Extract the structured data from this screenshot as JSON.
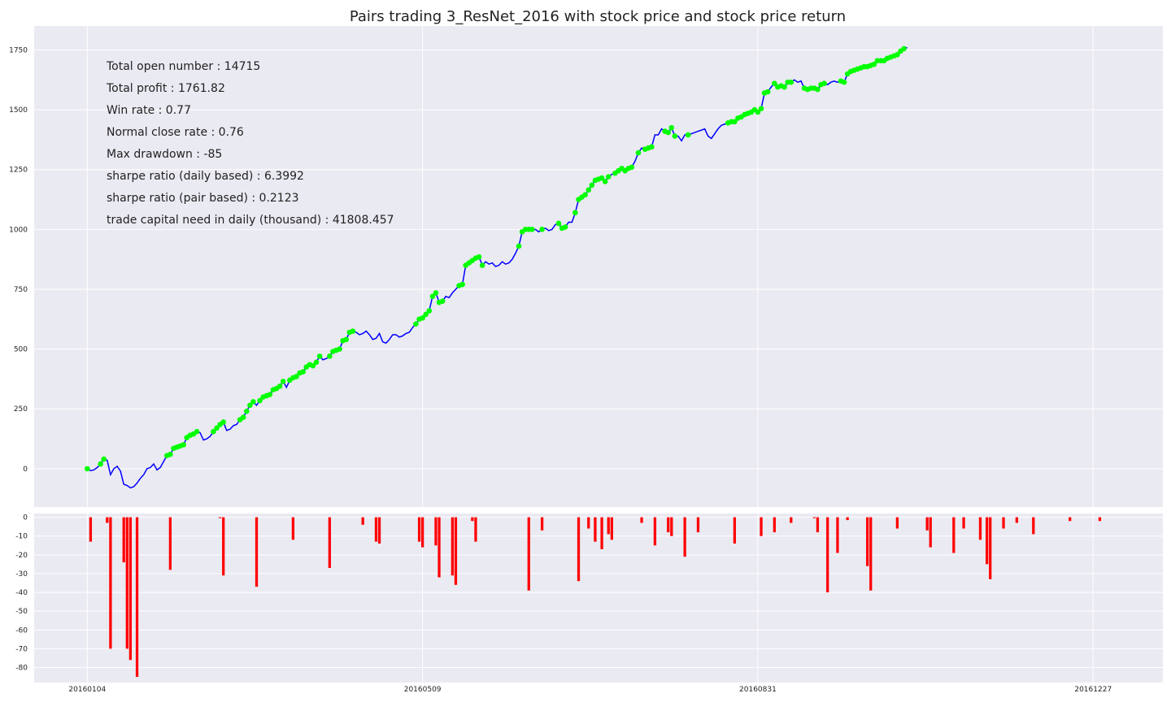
{
  "chart_data": [
    {
      "type": "line",
      "title": "Pairs trading 3_ResNet_2016 with stock price and stock price return",
      "stats": [
        "Total open number : 14715",
        "Total profit : 1761.82",
        "Win rate : 0.77",
        "Normal close rate : 0.76",
        "Max drawdown : -85",
        "sharpe ratio (daily based) : 6.3992",
        "sharpe ratio (pair based) : 0.2123",
        "trade capital need in daily (thousand) : 41808.457"
      ],
      "ylim": [
        -160,
        1850
      ],
      "yticks": [
        0,
        250,
        500,
        750,
        1000,
        1250,
        1500,
        1750
      ],
      "xlim": [
        -16,
        324
      ],
      "xticks": [
        0,
        101,
        202,
        303
      ],
      "xtick_labels": [
        "20160104",
        "20160509",
        "20160831",
        "20161227"
      ],
      "grid": true,
      "line_color": "#0000ff",
      "marker_color": "#00ff00",
      "series": [
        {
          "values": [
            0,
            -8,
            -5,
            5,
            20,
            40,
            35,
            -25,
            0,
            10,
            -10,
            -65,
            -70,
            -80,
            -75,
            -60,
            -40,
            -25,
            0,
            5,
            20,
            -5,
            5,
            30,
            55,
            60,
            85,
            90,
            95,
            100,
            130,
            140,
            145,
            155,
            150,
            120,
            125,
            135,
            155,
            170,
            185,
            195,
            160,
            165,
            180,
            185,
            205,
            215,
            240,
            265,
            280,
            265,
            285,
            300,
            305,
            310,
            330,
            335,
            345,
            365,
            340,
            370,
            380,
            385,
            400,
            405,
            425,
            435,
            430,
            445,
            470,
            455,
            460,
            470,
            490,
            495,
            500,
            535,
            540,
            570,
            575,
            570,
            560,
            565,
            575,
            560,
            540,
            545,
            565,
            530,
            525,
            540,
            560,
            560,
            550,
            555,
            565,
            570,
            590,
            605,
            625,
            630,
            645,
            660,
            720,
            735,
            695,
            700,
            720,
            715,
            735,
            750,
            765,
            770,
            850,
            860,
            870,
            880,
            885,
            850,
            865,
            855,
            860,
            845,
            850,
            865,
            855,
            860,
            875,
            900,
            930,
            990,
            1000,
            1000,
            1000,
            1000,
            990,
            1000,
            1005,
            995,
            1000,
            1020,
            1025,
            1005,
            1010,
            1030,
            1030,
            1070,
            1125,
            1135,
            1145,
            1165,
            1185,
            1205,
            1210,
            1215,
            1200,
            1220,
            1230,
            1235,
            1245,
            1255,
            1245,
            1255,
            1260,
            1285,
            1320,
            1340,
            1335,
            1340,
            1345,
            1395,
            1395,
            1420,
            1410,
            1405,
            1425,
            1390,
            1390,
            1370,
            1395,
            1395,
            1400,
            1405,
            1410,
            1415,
            1420,
            1390,
            1380,
            1400,
            1420,
            1435,
            1440,
            1445,
            1450,
            1450,
            1465,
            1470,
            1480,
            1485,
            1490,
            1500,
            1490,
            1505,
            1570,
            1575,
            1595,
            1610,
            1595,
            1600,
            1595,
            1615,
            1615,
            1625,
            1615,
            1620,
            1590,
            1585,
            1590,
            1590,
            1585,
            1605,
            1610,
            1605,
            1615,
            1620,
            1615,
            1620,
            1615,
            1650,
            1660,
            1665,
            1670,
            1675,
            1680,
            1680,
            1685,
            1690,
            1705,
            1705,
            1705,
            1715,
            1720,
            1725,
            1730,
            1745,
            1755,
            1760
          ],
          "markers": [
            0,
            4,
            5,
            24,
            25,
            26,
            27,
            28,
            29,
            30,
            31,
            32,
            33,
            38,
            39,
            40,
            41,
            46,
            47,
            48,
            49,
            50,
            52,
            53,
            54,
            55,
            56,
            57,
            58,
            59,
            61,
            62,
            63,
            64,
            65,
            66,
            67,
            68,
            69,
            70,
            73,
            74,
            75,
            76,
            77,
            78,
            79,
            80,
            99,
            100,
            101,
            102,
            103,
            104,
            105,
            106,
            107,
            112,
            113,
            114,
            115,
            116,
            117,
            118,
            119,
            130,
            131,
            132,
            133,
            134,
            137,
            142,
            143,
            144,
            147,
            148,
            149,
            150,
            151,
            152,
            153,
            154,
            155,
            156,
            157,
            159,
            160,
            161,
            162,
            163,
            164,
            166,
            168,
            169,
            170,
            174,
            175,
            176,
            177,
            181,
            193,
            194,
            195,
            196,
            197,
            198,
            199,
            200,
            201,
            202,
            203,
            204,
            205,
            207,
            208,
            209,
            210,
            211,
            212,
            216,
            217,
            218,
            219,
            220,
            221,
            222,
            227,
            228,
            229,
            230,
            231,
            232,
            233,
            234,
            235,
            236,
            237,
            238,
            239,
            240,
            241,
            242,
            243,
            244,
            245,
            246
          ]
        }
      ]
    },
    {
      "type": "bar",
      "ylim": [
        -88,
        2
      ],
      "yticks": [
        0,
        -10,
        -20,
        -30,
        -40,
        -50,
        -60,
        -70,
        -80
      ],
      "xlim": [
        -16,
        324
      ],
      "grid": true,
      "bar_color": "#ff0000",
      "bars": [
        {
          "x": 1,
          "value": -13
        },
        {
          "x": 6,
          "value": -3
        },
        {
          "x": 7,
          "value": -70
        },
        {
          "x": 11,
          "value": -24
        },
        {
          "x": 12,
          "value": -70
        },
        {
          "x": 13,
          "value": -76
        },
        {
          "x": 15,
          "value": -85
        },
        {
          "x": 25,
          "value": -28
        },
        {
          "x": 40,
          "value": -0.5
        },
        {
          "x": 41,
          "value": -31
        },
        {
          "x": 51,
          "value": -37
        },
        {
          "x": 62,
          "value": -12
        },
        {
          "x": 73,
          "value": -27
        },
        {
          "x": 83,
          "value": -4
        },
        {
          "x": 87,
          "value": -13
        },
        {
          "x": 88,
          "value": -14
        },
        {
          "x": 100,
          "value": -13
        },
        {
          "x": 101,
          "value": -16
        },
        {
          "x": 105,
          "value": -15
        },
        {
          "x": 106,
          "value": -32
        },
        {
          "x": 110,
          "value": -31
        },
        {
          "x": 111,
          "value": -36
        },
        {
          "x": 116,
          "value": -2
        },
        {
          "x": 117,
          "value": -13
        },
        {
          "x": 133,
          "value": -39
        },
        {
          "x": 137,
          "value": -7
        },
        {
          "x": 148,
          "value": -34
        },
        {
          "x": 151,
          "value": -6
        },
        {
          "x": 153,
          "value": -13
        },
        {
          "x": 155,
          "value": -17
        },
        {
          "x": 157,
          "value": -9
        },
        {
          "x": 158,
          "value": -12
        },
        {
          "x": 167,
          "value": -3
        },
        {
          "x": 171,
          "value": -15
        },
        {
          "x": 175,
          "value": -8
        },
        {
          "x": 176,
          "value": -10
        },
        {
          "x": 180,
          "value": -21
        },
        {
          "x": 184,
          "value": -8
        },
        {
          "x": 195,
          "value": -14
        },
        {
          "x": 203,
          "value": -10
        },
        {
          "x": 207,
          "value": -8
        },
        {
          "x": 212,
          "value": -3
        },
        {
          "x": 219,
          "value": -0.5
        },
        {
          "x": 220,
          "value": -8
        },
        {
          "x": 223,
          "value": -40
        },
        {
          "x": 226,
          "value": -19
        },
        {
          "x": 229,
          "value": -1.5
        },
        {
          "x": 235,
          "value": -26
        },
        {
          "x": 236,
          "value": -39
        },
        {
          "x": 244,
          "value": -6
        },
        {
          "x": 253,
          "value": -7
        },
        {
          "x": 254,
          "value": -16
        },
        {
          "x": 261,
          "value": -19
        },
        {
          "x": 264,
          "value": -6
        },
        {
          "x": 269,
          "value": -12
        },
        {
          "x": 271,
          "value": -25
        },
        {
          "x": 272,
          "value": -33
        },
        {
          "x": 276,
          "value": -6
        },
        {
          "x": 280,
          "value": -3
        },
        {
          "x": 285,
          "value": -9
        },
        {
          "x": 296,
          "value": -2
        },
        {
          "x": 305,
          "value": -2
        }
      ]
    }
  ]
}
